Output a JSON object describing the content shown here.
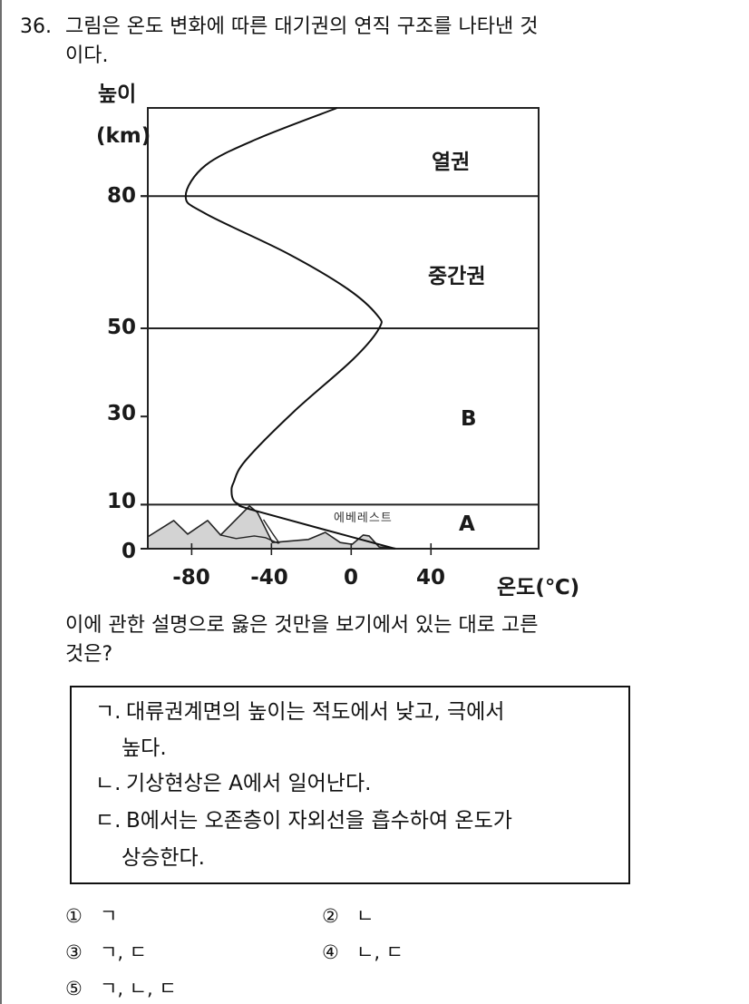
{
  "question": {
    "number": "36.",
    "stem_line1": "그림은 온도 변화에 따른 대기권의 연직 구조를 나타낸 것",
    "stem_line2": "이다.",
    "prompt_line1": "이에 관한 설명으로 옳은 것만을 보기에서 있는 대로 고른",
    "prompt_line2": "것은?"
  },
  "box": {
    "items": [
      {
        "marker": "ㄱ.",
        "line1": "대류권계면의 높이는 적도에서 낮고, 극에서",
        "line2": "높다."
      },
      {
        "marker": "ㄴ.",
        "line1": "기상현상은 A에서 일어난다."
      },
      {
        "marker": "ㄷ.",
        "line1": "B에서는 오존층이 자외선을 흡수하여 온도가",
        "line2": "상승한다."
      }
    ]
  },
  "choices": [
    {
      "num": "①",
      "text": "ㄱ"
    },
    {
      "num": "②",
      "text": "ㄴ"
    },
    {
      "num": "③",
      "text": "ㄱ, ㄷ"
    },
    {
      "num": "④",
      "text": "ㄴ, ㄷ"
    },
    {
      "num": "⑤",
      "text": "ㄱ, ㄴ, ㄷ"
    }
  ],
  "chart_data": {
    "type": "line",
    "title": "",
    "xlabel": "온도(℃)",
    "ylabel_line1": "높이",
    "ylabel_line2": "(km)",
    "xlim": [
      -102,
      94
    ],
    "ylim": [
      0,
      100
    ],
    "x_ticks": [
      -80,
      -40,
      0,
      40
    ],
    "x_tick_labels": [
      "-80",
      "-40",
      "0",
      "40"
    ],
    "y_ticks": [
      0,
      10,
      30,
      50,
      80
    ],
    "y_tick_labels": [
      "0",
      "10",
      "30",
      "50",
      "80"
    ],
    "boundary_lines": [
      10,
      50,
      80
    ],
    "grid": false,
    "legend": null,
    "regions": [
      {
        "label": "열권",
        "h_range": [
          80,
          100
        ]
      },
      {
        "label": "중간권",
        "h_range": [
          50,
          80
        ]
      },
      {
        "label": "B",
        "h_range": [
          10,
          50
        ]
      },
      {
        "label": "A",
        "h_range": [
          0,
          10
        ]
      }
    ],
    "annotation": "에베레스트",
    "series": [
      {
        "name": "temperature_profile",
        "points": [
          [
            -7,
            100
          ],
          [
            -47,
            93
          ],
          [
            -73,
            87
          ],
          [
            -83,
            80
          ],
          [
            -73,
            76
          ],
          [
            -32,
            67
          ],
          [
            -2,
            59
          ],
          [
            13,
            53
          ],
          [
            14,
            50
          ],
          [
            1,
            43
          ],
          [
            -29,
            31
          ],
          [
            -53,
            20
          ],
          [
            -59,
            15
          ],
          [
            -60,
            13
          ],
          [
            -59,
            11
          ],
          [
            -56,
            10
          ],
          [
            -48,
            8.6
          ],
          [
            22,
            0
          ]
        ]
      }
    ],
    "terrain": [
      [
        -102,
        2.7
      ],
      [
        -89,
        6.4
      ],
      [
        -82,
        3.3
      ],
      [
        -72,
        6.4
      ],
      [
        -65.5,
        3.1
      ],
      [
        -51,
        9.7
      ],
      [
        -47,
        8.2
      ],
      [
        -39.5,
        1.4
      ],
      [
        -21.4,
        2.1
      ],
      [
        -13,
        3.7
      ],
      [
        -5.5,
        1.4
      ],
      [
        0.5,
        1.0
      ],
      [
        6,
        3.1
      ],
      [
        9,
        2.9
      ],
      [
        14,
        0.4
      ],
      [
        24,
        0
      ]
    ],
    "terrain_lines": [
      [
        [
          -65.5,
          3.1
        ],
        [
          -57.7,
          2.3
        ],
        [
          -48.6,
          2.9
        ],
        [
          -43,
          2.5
        ],
        [
          -36.4,
          1.2
        ]
      ],
      [
        [
          -44,
          6.6
        ],
        [
          -39.5,
          3.5
        ],
        [
          -36,
          1.2
        ]
      ]
    ]
  }
}
